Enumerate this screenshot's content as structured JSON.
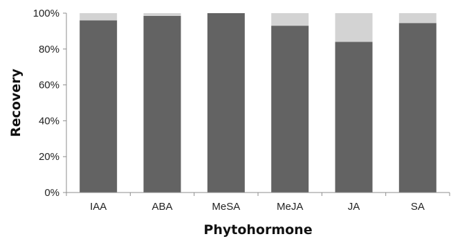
{
  "chart_data": {
    "type": "bar",
    "stacked": true,
    "categories": [
      "IAA",
      "ABA",
      "MeSA",
      "MeJA",
      "JA",
      "SA"
    ],
    "series": [
      {
        "values": [
          96,
          98.5,
          100,
          93,
          84,
          94.5
        ],
        "color": "#636363"
      },
      {
        "values": [
          4,
          1.5,
          0,
          7,
          16,
          5.5
        ],
        "color": "#d3d3d3"
      }
    ],
    "xlabel": "Phytohormone",
    "ylabel": "Recovery",
    "ylim": [
      0,
      100
    ],
    "yticks": [
      0,
      20,
      40,
      60,
      80,
      100
    ],
    "ytick_labels": [
      "0%",
      "20%",
      "40%",
      "60%",
      "80%",
      "100%"
    ],
    "grid": false,
    "legend": "none"
  }
}
